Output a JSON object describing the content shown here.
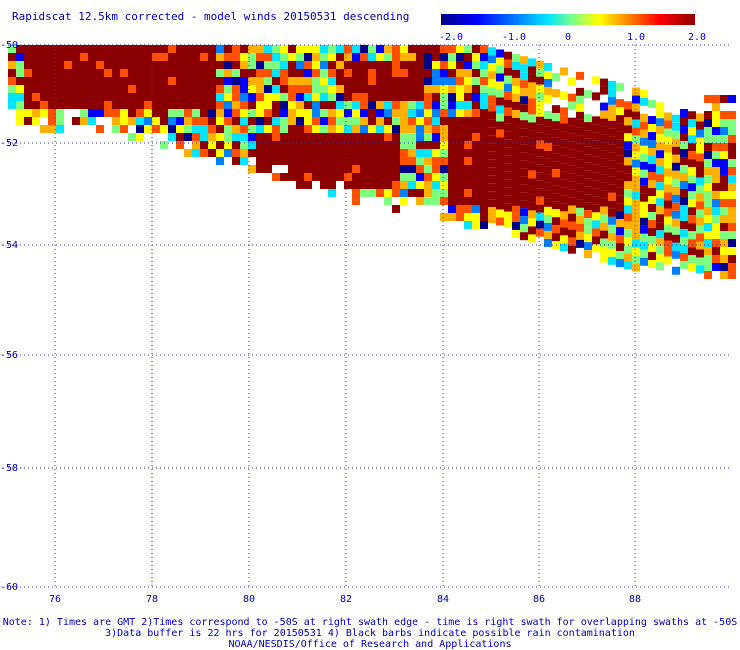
{
  "title": "Rapidscat 12.5km corrected - model winds 20150531 descending",
  "colorbar": {
    "labels": [
      "-2.0",
      "-1.0",
      "0",
      "1.0",
      "2.0"
    ],
    "colors": [
      "#00008b",
      "#0000ff",
      "#0080ff",
      "#00e5ff",
      "#7fff80",
      "#ffff00",
      "#ff8000",
      "#ff0000",
      "#8b0000"
    ]
  },
  "axes": {
    "x_ticks": [
      "76",
      "78",
      "80",
      "82",
      "84",
      "86",
      "88"
    ],
    "y_ticks": [
      "-50",
      "-52",
      "-54",
      "-56",
      "-58",
      "-60"
    ]
  },
  "notes": {
    "line1": "Note: 1) Times are GMT 2)Times correspond to -50S at right swath edge - time is right swath for overlapping swaths at -50S",
    "line2": "3)Data buffer is 22 hrs for 20150531 4) Black barbs indicate possible rain contamination",
    "line3": "NOAA/NESDIS/Office of Research and Applications"
  }
}
